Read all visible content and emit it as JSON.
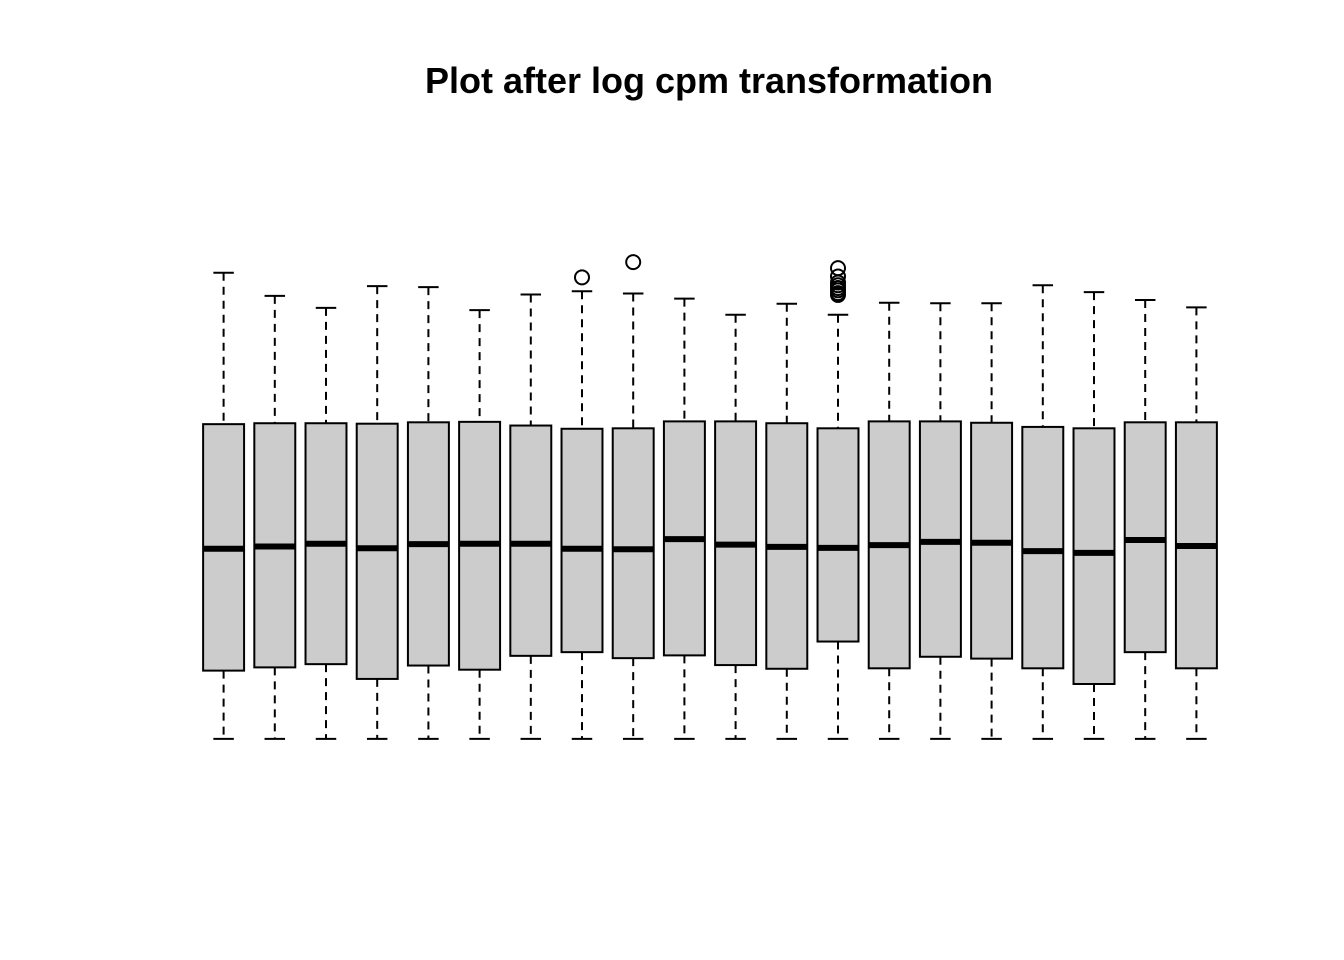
{
  "chart_data": {
    "type": "boxplot",
    "title": "Plot after log cpm transformation",
    "xlabel": "",
    "ylabel": "",
    "axes_visible": false,
    "ylim": [
      -0.5,
      12.5
    ],
    "box_fill": "#cccccc",
    "stroke_color": "#000000",
    "boxes": [
      {
        "whisker_low": 0,
        "q1": 1.48,
        "median": 4.12,
        "q3": 6.82,
        "whisker_high": 10.1,
        "outliers": []
      },
      {
        "whisker_low": 0,
        "q1": 1.55,
        "median": 4.17,
        "q3": 6.84,
        "whisker_high": 9.6,
        "outliers": []
      },
      {
        "whisker_low": 0,
        "q1": 1.62,
        "median": 4.23,
        "q3": 6.84,
        "whisker_high": 9.34,
        "outliers": []
      },
      {
        "whisker_low": 0,
        "q1": 1.3,
        "median": 4.13,
        "q3": 6.83,
        "whisker_high": 9.81,
        "outliers": []
      },
      {
        "whisker_low": 0,
        "q1": 1.59,
        "median": 4.22,
        "q3": 6.86,
        "whisker_high": 9.79,
        "outliers": []
      },
      {
        "whisker_low": 0,
        "q1": 1.5,
        "median": 4.23,
        "q3": 6.87,
        "whisker_high": 9.29,
        "outliers": []
      },
      {
        "whisker_low": 0,
        "q1": 1.8,
        "median": 4.23,
        "q3": 6.79,
        "whisker_high": 9.63,
        "outliers": []
      },
      {
        "whisker_low": 0,
        "q1": 1.88,
        "median": 4.12,
        "q3": 6.72,
        "whisker_high": 9.7,
        "outliers": [
          10.0
        ]
      },
      {
        "whisker_low": 0,
        "q1": 1.75,
        "median": 4.11,
        "q3": 6.73,
        "whisker_high": 9.65,
        "outliers": [
          10.33
        ]
      },
      {
        "whisker_low": 0,
        "q1": 1.81,
        "median": 4.33,
        "q3": 6.88,
        "whisker_high": 9.54,
        "outliers": []
      },
      {
        "whisker_low": 0,
        "q1": 1.6,
        "median": 4.21,
        "q3": 6.88,
        "whisker_high": 9.19,
        "outliers": []
      },
      {
        "whisker_low": 0,
        "q1": 1.52,
        "median": 4.16,
        "q3": 6.84,
        "whisker_high": 9.43,
        "outliers": []
      },
      {
        "whisker_low": 0,
        "q1": 2.11,
        "median": 4.14,
        "q3": 6.73,
        "whisker_high": 9.19,
        "outliers": [
          9.62,
          9.66,
          9.72,
          9.77,
          9.83,
          9.89,
          10.02,
          10.2
        ]
      },
      {
        "whisker_low": 0,
        "q1": 1.53,
        "median": 4.2,
        "q3": 6.88,
        "whisker_high": 9.45,
        "outliers": []
      },
      {
        "whisker_low": 0,
        "q1": 1.78,
        "median": 4.27,
        "q3": 6.88,
        "whisker_high": 9.44,
        "outliers": []
      },
      {
        "whisker_low": 0,
        "q1": 1.74,
        "median": 4.25,
        "q3": 6.85,
        "whisker_high": 9.44,
        "outliers": []
      },
      {
        "whisker_low": 0,
        "q1": 1.53,
        "median": 4.07,
        "q3": 6.76,
        "whisker_high": 9.83,
        "outliers": []
      },
      {
        "whisker_low": 0,
        "q1": 1.19,
        "median": 4.03,
        "q3": 6.73,
        "whisker_high": 9.68,
        "outliers": []
      },
      {
        "whisker_low": 0,
        "q1": 1.88,
        "median": 4.31,
        "q3": 6.86,
        "whisker_high": 9.51,
        "outliers": []
      },
      {
        "whisker_low": 0,
        "q1": 1.53,
        "median": 4.18,
        "q3": 6.86,
        "whisker_high": 9.35,
        "outliers": []
      }
    ]
  }
}
